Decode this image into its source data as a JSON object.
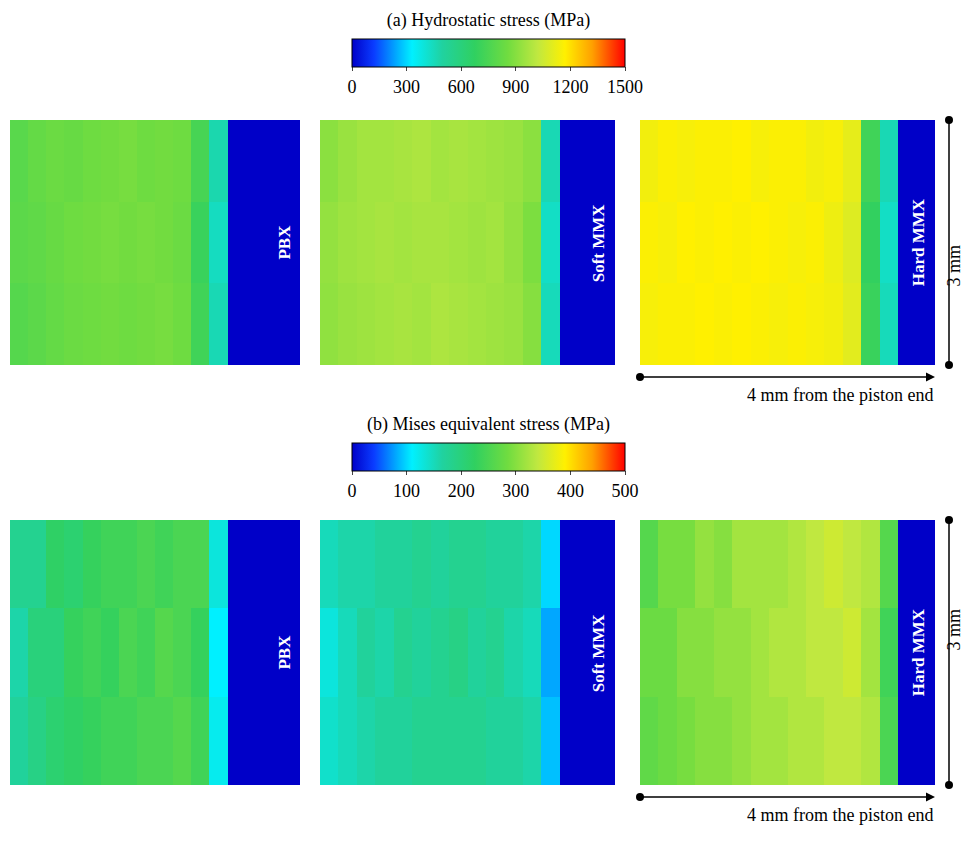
{
  "chart_data": [
    {
      "type": "heatmap",
      "title": "(a) Hydrostatic stress (MPa)",
      "xlabel": "4 mm from the piston end",
      "ylabel": "3 mm",
      "tick_labels": false,
      "xlim": [
        0,
        4
      ],
      "ylim": [
        0,
        3
      ],
      "x": [
        0.125,
        0.375,
        0.625,
        0.875,
        1.125,
        1.375,
        1.625,
        1.875,
        2.125,
        2.375,
        2.625,
        2.875,
        3.125,
        3.375,
        3.625,
        3.875
      ],
      "y": [
        0.5,
        1.5,
        2.5
      ],
      "colorbar": {
        "range": [
          0,
          1500
        ],
        "ticks": [
          0,
          300,
          600,
          900,
          1200,
          1500
        ]
      },
      "panels": [
        {
          "label": "PBX",
          "cells": [
            [
              780,
              800,
              820,
              840,
              850,
              860,
              850,
              860,
              870,
              850,
              720,
              460,
              0,
              0,
              0,
              0
            ],
            [
              800,
              810,
              830,
              850,
              860,
              870,
              860,
              870,
              860,
              840,
              700,
              440,
              0,
              0,
              0,
              0
            ],
            [
              790,
              820,
              840,
              830,
              850,
              860,
              870,
              850,
              860,
              850,
              740,
              470,
              0,
              0,
              0,
              0
            ]
          ]
        },
        {
          "label": "Soft MMX",
          "cells": [
            [
              920,
              940,
              950,
              960,
              970,
              960,
              980,
              970,
              960,
              950,
              940,
              900,
              450,
              0,
              0,
              0
            ],
            [
              930,
              950,
              960,
              970,
              960,
              970,
              970,
              960,
              950,
              960,
              930,
              880,
              430,
              0,
              0,
              0
            ],
            [
              910,
              940,
              960,
              960,
              970,
              980,
              960,
              970,
              960,
              950,
              940,
              910,
              460,
              0,
              0,
              0
            ]
          ]
        },
        {
          "label": "Hard MMX",
          "cells": [
            [
              1150,
              1160,
              1160,
              1170,
              1160,
              1170,
              1160,
              1150,
              1160,
              1150,
              1140,
              1100,
              700,
              450,
              0,
              0
            ],
            [
              1160,
              1150,
              1170,
              1160,
              1170,
              1160,
              1170,
              1160,
              1150,
              1160,
              1130,
              1090,
              680,
              430,
              0,
              0
            ],
            [
              1140,
              1160,
              1150,
              1160,
              1160,
              1170,
              1150,
              1160,
              1160,
              1140,
              1150,
              1110,
              720,
              460,
              0,
              0
            ]
          ]
        }
      ]
    },
    {
      "type": "heatmap",
      "title": "(b) Mises equivalent stress (MPa)",
      "xlabel": "4 mm from the piston end",
      "ylabel": "3 mm",
      "tick_labels": false,
      "xlim": [
        0,
        4
      ],
      "ylim": [
        0,
        3
      ],
      "x": [
        0.125,
        0.375,
        0.625,
        0.875,
        1.125,
        1.375,
        1.625,
        1.875,
        2.125,
        2.375,
        2.625,
        2.875,
        3.125,
        3.375,
        3.625,
        3.875
      ],
      "y": [
        0.5,
        1.5,
        2.5
      ],
      "colorbar": {
        "range": [
          0,
          500
        ],
        "ticks": [
          0,
          100,
          200,
          300,
          400,
          500
        ]
      },
      "panels": [
        {
          "label": "PBX",
          "cells": [
            [
              170,
              190,
              210,
              220,
              230,
              240,
              240,
              250,
              250,
              260,
              240,
              120,
              0,
              0,
              0,
              0
            ],
            [
              160,
              200,
              200,
              230,
              240,
              230,
              250,
              240,
              260,
              250,
              230,
              110,
              0,
              0,
              0,
              0
            ],
            [
              180,
              180,
              220,
              210,
              230,
              240,
              240,
              250,
              240,
              250,
              250,
              130,
              0,
              0,
              0,
              0
            ]
          ]
        },
        {
          "label": "Soft MMX",
          "cells": [
            [
              140,
              150,
              160,
              170,
              170,
              180,
              180,
              180,
              180,
              170,
              170,
              160,
              90,
              0,
              0,
              0
            ],
            [
              130,
              150,
              170,
              160,
              180,
              170,
              180,
              190,
              170,
              180,
              160,
              150,
              80,
              0,
              0,
              0
            ],
            [
              150,
              160,
              160,
              170,
              170,
              180,
              170,
              180,
              180,
              170,
              170,
              160,
              100,
              0,
              0,
              0
            ]
          ]
        },
        {
          "label": "Hard MMX",
          "cells": [
            [
              270,
              280,
              290,
              300,
              300,
              310,
              320,
              320,
              330,
              330,
              340,
              340,
              330,
              250,
              0,
              0
            ],
            [
              280,
              280,
              300,
              300,
              310,
              310,
              320,
              330,
              330,
              340,
              340,
              350,
              320,
              240,
              0,
              0
            ],
            [
              260,
              290,
              290,
              310,
              300,
              320,
              320,
              320,
              330,
              340,
              350,
              340,
              330,
              260,
              0,
              0
            ]
          ]
        }
      ]
    }
  ]
}
